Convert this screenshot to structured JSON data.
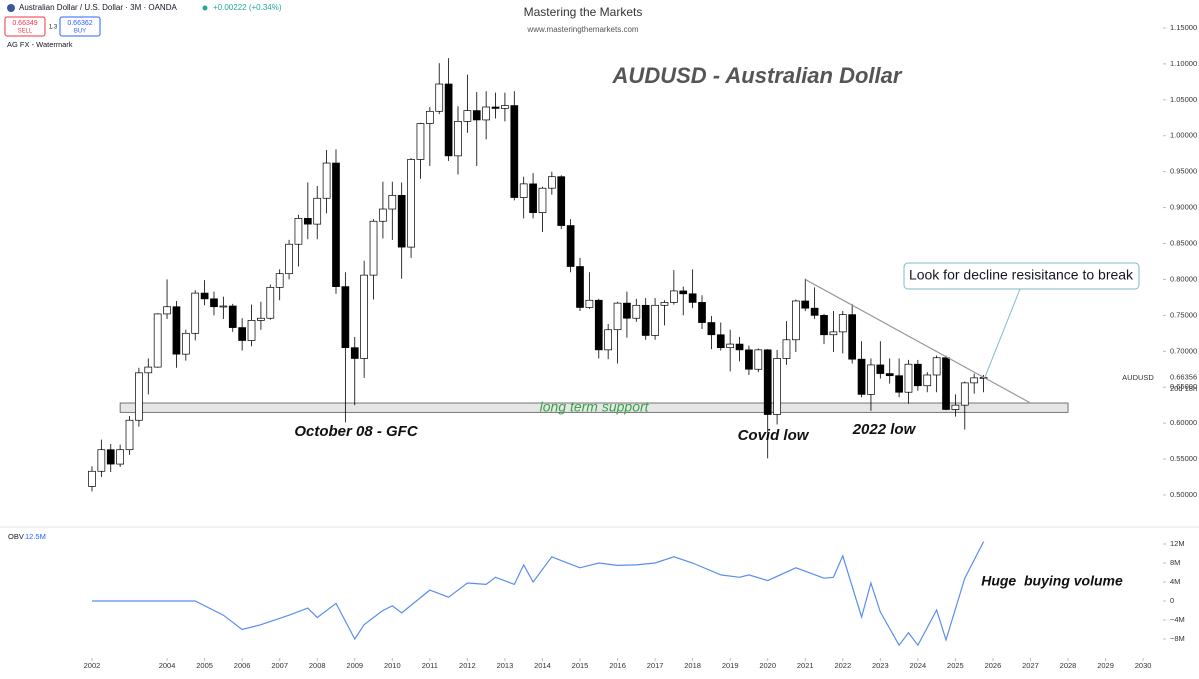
{
  "header": {
    "symbol_title": "Australian Dollar / U.S. Dollar · 3M · OANDA",
    "change": "+0.00222 (+0.34%)",
    "sell_price": "0.66349",
    "sell_label": "SELL",
    "spread": "1.3",
    "buy_price": "0.66362",
    "buy_label": "BUY",
    "watermark": "AG FX - Watermark"
  },
  "brand": {
    "name": "Mastering the Markets",
    "url": "www.masteringthemarkets.com"
  },
  "chart_data": [
    {
      "type": "candlestick",
      "title": "AUDUSD - Australian Dollar",
      "symbol": "AUDUSD",
      "last_price_label": "0.66356",
      "countdown": "20d 18h",
      "up_color": "#ffffff",
      "down_color": "#000000",
      "x": [
        2002,
        2002.25,
        2002.5,
        2002.75,
        2003,
        2003.25,
        2003.5,
        2003.75,
        2004,
        2004.25,
        2004.5,
        2004.75,
        2005,
        2005.25,
        2005.5,
        2005.75,
        2006,
        2006.25,
        2006.5,
        2006.75,
        2007,
        2007.25,
        2007.5,
        2007.75,
        2008,
        2008.25,
        2008.5,
        2008.75,
        2009,
        2009.25,
        2009.5,
        2009.75,
        2010,
        2010.25,
        2010.5,
        2010.75,
        2011,
        2011.25,
        2011.5,
        2011.75,
        2012,
        2012.25,
        2012.5,
        2012.75,
        2013,
        2013.25,
        2013.5,
        2013.75,
        2014,
        2014.25,
        2014.5,
        2014.75,
        2015,
        2015.25,
        2015.5,
        2015.75,
        2016,
        2016.25,
        2016.5,
        2016.75,
        2017,
        2017.25,
        2017.5,
        2017.75,
        2018,
        2018.25,
        2018.5,
        2018.75,
        2019,
        2019.25,
        2019.5,
        2019.75,
        2020,
        2020.25,
        2020.5,
        2020.75,
        2021,
        2021.25,
        2021.5,
        2021.75,
        2022,
        2022.25,
        2022.5,
        2022.75,
        2023,
        2023.25,
        2023.5,
        2023.75,
        2024,
        2024.25,
        2024.5,
        2024.75,
        2025,
        2025.25,
        2025.5,
        2025.75
      ],
      "open": [
        0.512,
        0.533,
        0.563,
        0.543,
        0.563,
        0.604,
        0.67,
        0.678,
        0.752,
        0.762,
        0.696,
        0.725,
        0.781,
        0.773,
        0.762,
        0.763,
        0.733,
        0.715,
        0.743,
        0.746,
        0.789,
        0.808,
        0.849,
        0.885,
        0.877,
        0.913,
        0.962,
        0.79,
        0.705,
        0.69,
        0.806,
        0.881,
        0.898,
        0.917,
        0.845,
        0.967,
        1.017,
        1.034,
        1.072,
        0.972,
        1.02,
        1.035,
        1.022,
        1.04,
        1.038,
        1.042,
        0.914,
        0.933,
        0.893,
        0.927,
        0.943,
        0.875,
        0.818,
        0.761,
        0.771,
        0.702,
        0.73,
        0.767,
        0.746,
        0.764,
        0.722,
        0.764,
        0.768,
        0.784,
        0.78,
        0.768,
        0.74,
        0.723,
        0.705,
        0.71,
        0.702,
        0.675,
        0.702,
        0.612,
        0.69,
        0.716,
        0.77,
        0.76,
        0.75,
        0.723,
        0.727,
        0.751,
        0.689,
        0.64,
        0.681,
        0.669,
        0.666,
        0.643,
        0.682,
        0.652,
        0.667,
        0.691,
        0.619,
        0.625,
        0.656,
        0.663
      ],
      "high": [
        0.54,
        0.577,
        0.571,
        0.57,
        0.61,
        0.677,
        0.69,
        0.753,
        0.8,
        0.77,
        0.73,
        0.785,
        0.799,
        0.783,
        0.776,
        0.766,
        0.746,
        0.765,
        0.769,
        0.793,
        0.814,
        0.855,
        0.89,
        0.935,
        0.93,
        0.98,
        0.981,
        0.81,
        0.72,
        0.826,
        0.884,
        0.936,
        0.936,
        0.935,
        0.969,
        1.018,
        1.04,
        1.101,
        1.108,
        1.041,
        1.085,
        1.061,
        1.062,
        1.06,
        1.06,
        1.062,
        0.943,
        0.948,
        0.929,
        0.95,
        0.945,
        0.884,
        0.83,
        0.81,
        0.773,
        0.738,
        0.769,
        0.783,
        0.773,
        0.774,
        0.774,
        0.771,
        0.813,
        0.79,
        0.814,
        0.778,
        0.749,
        0.74,
        0.73,
        0.72,
        0.708,
        0.704,
        0.703,
        0.702,
        0.742,
        0.772,
        0.801,
        0.789,
        0.752,
        0.756,
        0.756,
        0.766,
        0.714,
        0.69,
        0.714,
        0.69,
        0.69,
        0.688,
        0.688,
        0.671,
        0.694,
        0.694,
        0.64,
        0.658,
        0.669,
        0.667
      ],
      "low": [
        0.505,
        0.525,
        0.532,
        0.539,
        0.556,
        0.595,
        0.64,
        0.677,
        0.745,
        0.677,
        0.687,
        0.715,
        0.764,
        0.75,
        0.745,
        0.727,
        0.701,
        0.707,
        0.73,
        0.744,
        0.771,
        0.8,
        0.818,
        0.856,
        0.856,
        0.892,
        0.78,
        0.601,
        0.625,
        0.663,
        0.772,
        0.857,
        0.855,
        0.801,
        0.83,
        0.94,
        0.958,
        1.03,
        0.965,
        0.946,
        1.004,
        0.958,
        0.995,
        1.024,
        1.02,
        0.91,
        0.885,
        0.885,
        0.866,
        0.918,
        0.87,
        0.81,
        0.756,
        0.759,
        0.69,
        0.689,
        0.683,
        0.719,
        0.741,
        0.716,
        0.716,
        0.736,
        0.765,
        0.75,
        0.76,
        0.731,
        0.703,
        0.701,
        0.672,
        0.686,
        0.667,
        0.671,
        0.551,
        0.598,
        0.681,
        0.699,
        0.756,
        0.745,
        0.71,
        0.699,
        0.697,
        0.683,
        0.636,
        0.617,
        0.662,
        0.655,
        0.636,
        0.627,
        0.645,
        0.643,
        0.643,
        0.618,
        0.609,
        0.591,
        0.641,
        0.643
      ],
      "close": [
        0.533,
        0.563,
        0.543,
        0.563,
        0.604,
        0.67,
        0.678,
        0.752,
        0.762,
        0.696,
        0.725,
        0.781,
        0.773,
        0.762,
        0.763,
        0.733,
        0.715,
        0.743,
        0.746,
        0.789,
        0.808,
        0.849,
        0.885,
        0.877,
        0.913,
        0.962,
        0.79,
        0.705,
        0.69,
        0.806,
        0.881,
        0.898,
        0.917,
        0.845,
        0.967,
        1.017,
        1.034,
        1.072,
        0.972,
        1.02,
        1.035,
        1.022,
        1.04,
        1.038,
        1.042,
        0.914,
        0.933,
        0.893,
        0.927,
        0.943,
        0.875,
        0.818,
        0.761,
        0.771,
        0.702,
        0.73,
        0.767,
        0.746,
        0.764,
        0.722,
        0.764,
        0.768,
        0.784,
        0.78,
        0.768,
        0.74,
        0.723,
        0.705,
        0.71,
        0.702,
        0.675,
        0.702,
        0.612,
        0.69,
        0.716,
        0.77,
        0.76,
        0.75,
        0.723,
        0.727,
        0.751,
        0.689,
        0.64,
        0.681,
        0.669,
        0.666,
        0.643,
        0.682,
        0.652,
        0.667,
        0.691,
        0.619,
        0.625,
        0.656,
        0.663,
        0.6636
      ],
      "xlim": [
        1999.55,
        2030.45
      ],
      "ylim": [
        0.4582,
        1.1611
      ],
      "yticks": [
        {
          "value": 0.5,
          "label": "0.50000"
        },
        {
          "value": 0.55,
          "label": "0.55000"
        },
        {
          "value": 0.6,
          "label": "0.60000"
        },
        {
          "value": 0.65,
          "label": "0.65000"
        },
        {
          "value": 0.7,
          "label": "0.70000"
        },
        {
          "value": 0.75,
          "label": "0.75000"
        },
        {
          "value": 0.8,
          "label": "0.80000"
        },
        {
          "value": 0.85,
          "label": "0.85000"
        },
        {
          "value": 0.9,
          "label": "0.90000"
        },
        {
          "value": 0.95,
          "label": "0.95000"
        },
        {
          "value": 1.0,
          "label": "1.00000"
        },
        {
          "value": 1.05,
          "label": "1.05000"
        },
        {
          "value": 1.1,
          "label": "1.10000"
        },
        {
          "value": 1.15,
          "label": "1.15000"
        }
      ],
      "last_price": 0.66356,
      "support_zone": {
        "label": "long term support",
        "x": [
          2002.75,
          2028
        ],
        "y": [
          0.615,
          0.628
        ]
      },
      "trendline": {
        "x": [
          2021,
          2027
        ],
        "y": [
          0.8,
          0.628
        ]
      },
      "annotations": [
        "October 08 - GFC",
        "Covid low",
        "2022 low"
      ],
      "callout": "Look for decline resisitance to break"
    },
    {
      "type": "line",
      "indicator": "OBV",
      "value_label": "12.5M",
      "annotation": "Huge  buying volume",
      "x": [
        2002,
        2004.75,
        2005.5,
        2006,
        2006.5,
        2007.25,
        2007.75,
        2008,
        2008.5,
        2009,
        2009.25,
        2009.75,
        2010,
        2010.25,
        2011,
        2011.5,
        2012,
        2012.5,
        2012.75,
        2013.25,
        2013.5,
        2013.75,
        2014.25,
        2014.5,
        2015,
        2015.5,
        2016,
        2016.5,
        2017,
        2017.5,
        2018,
        2018.75,
        2019.25,
        2019.5,
        2020,
        2020.75,
        2021.5,
        2021.75,
        2022,
        2022.5,
        2022.75,
        2023,
        2023.5,
        2023.75,
        2024,
        2024.5,
        2024.75,
        2025.25,
        2025.75
      ],
      "series": [
        {
          "name": "OBV",
          "color": "#5b8def",
          "values": [
            0,
            0,
            -3000000,
            -6000000,
            -5000000,
            -3000000,
            -1500000,
            -3500000,
            -500000,
            -8000000,
            -5000000,
            -2000000,
            -1000000,
            -2500000,
            2300000,
            800000,
            3800000,
            3500000,
            5000000,
            3500000,
            7600000,
            4000000,
            9300000,
            8500000,
            7000000,
            8000000,
            7500000,
            7600000,
            8000000,
            9300000,
            8000000,
            5500000,
            5000000,
            5500000,
            4300000,
            7000000,
            4800000,
            5000000,
            9500000,
            -3400000,
            3800000,
            -2300000,
            -9300000,
            -6700000,
            -9300000,
            -1900000,
            -8200000,
            4800000,
            12500000
          ]
        }
      ],
      "xlim": [
        1999.55,
        2030.45
      ],
      "ylim": [
        -11370000,
        14950000
      ],
      "yticks": [
        {
          "value": 12000000,
          "label": "12M"
        },
        {
          "value": 8000000,
          "label": "8M"
        },
        {
          "value": 4000000,
          "label": "4M"
        },
        0,
        {
          "value": -4000000,
          "label": "−4M"
        },
        {
          "value": -8000000,
          "label": "−8M"
        }
      ],
      "xticks": [
        2002,
        2004,
        2005,
        2006,
        2007,
        2008,
        2009,
        2010,
        2011,
        2012,
        2013,
        2014,
        2015,
        2016,
        2017,
        2018,
        2019,
        2020,
        2021,
        2022,
        2023,
        2024,
        2025,
        2026,
        2027,
        2028,
        2029,
        2030
      ]
    }
  ]
}
